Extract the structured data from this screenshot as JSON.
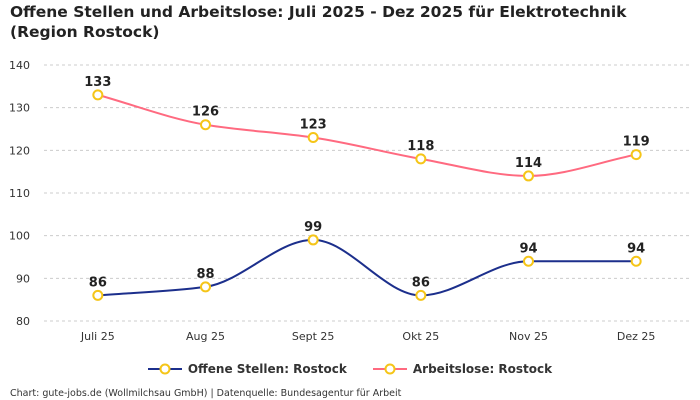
{
  "chart_data": {
    "type": "line",
    "title": "Offene Stellen und Arbeitslose: Juli 2025 - Dez 2025 für Elektrotechnik (Region Rostock)",
    "categories": [
      "Juli 25",
      "Aug 25",
      "Sept 25",
      "Okt 25",
      "Nov 25",
      "Dez 25"
    ],
    "series": [
      {
        "name": "Offene Stellen: Rostock",
        "values": [
          86,
          88,
          99,
          86,
          94,
          94
        ],
        "color": "#1c2f8c"
      },
      {
        "name": "Arbeitslose: Rostock",
        "values": [
          133,
          126,
          123,
          118,
          114,
          119
        ],
        "color": "#ff6a80"
      }
    ],
    "ylim": [
      80,
      140
    ],
    "yticks": [
      80,
      90,
      100,
      110,
      120,
      130,
      140
    ],
    "grid": true,
    "legend": "bottom",
    "marker_color": "#f5c518"
  },
  "footer": "Chart: gute-jobs.de (Wollmilchsau GmbH) | Datenquelle: Bundesagentur für Arbeit"
}
